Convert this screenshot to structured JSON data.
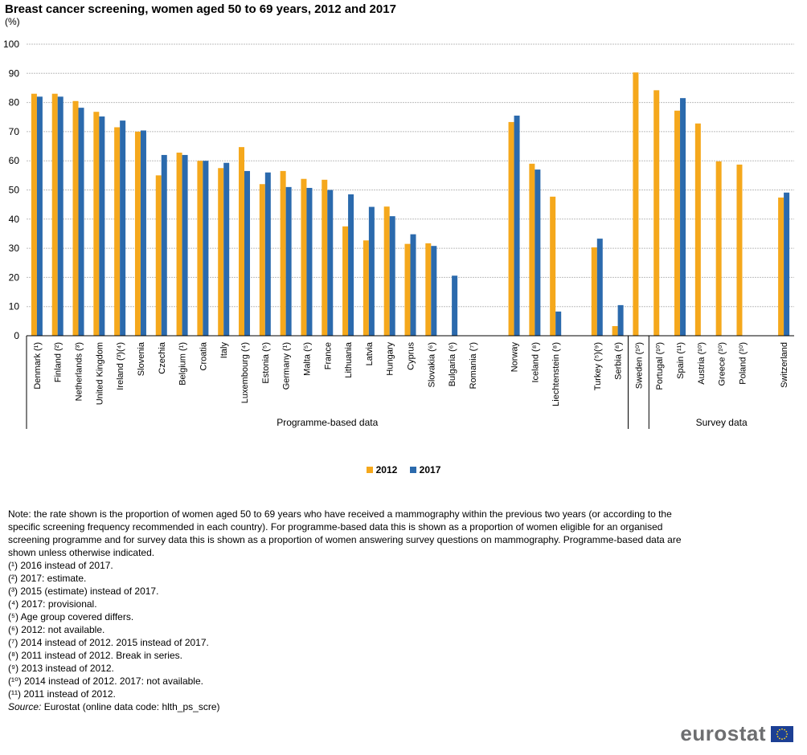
{
  "title": "Breast cancer screening, women aged 50 to 69 years, 2012 and 2017",
  "subtitle": "(%)",
  "colors": {
    "y2012": "#f5a81c",
    "y2017": "#2b6aad",
    "grid": "#bdbdbd",
    "axis": "#000000"
  },
  "legend": [
    {
      "label": "2012",
      "color": "#f5a81c"
    },
    {
      "label": "2017",
      "color": "#2b6aad"
    }
  ],
  "chart_data": {
    "type": "bar",
    "title": "Breast cancer screening, women aged 50 to 69 years, 2012 and 2017",
    "ylabel": "(%)",
    "ylim": [
      0,
      100
    ],
    "yticks": [
      0,
      10,
      20,
      30,
      40,
      50,
      60,
      70,
      80,
      90,
      100
    ],
    "grid": true,
    "legend_position": "bottom",
    "series_names": [
      "2012",
      "2017"
    ],
    "groups": [
      {
        "label": "Programme-based data",
        "categories": [
          {
            "label": "Denmark (¹)",
            "v2012": 83,
            "v2017": 82
          },
          {
            "label": "Finland (²)",
            "v2012": 83,
            "v2017": 82
          },
          {
            "label": "Netherlands (³)",
            "v2012": 80.5,
            "v2017": 78.2
          },
          {
            "label": "United Kingdom",
            "v2012": 76.8,
            "v2017": 75.2
          },
          {
            "label": "Ireland (³)(⁴)",
            "v2012": 71.5,
            "v2017": 73.8
          },
          {
            "label": "Slovenia",
            "v2012": 70,
            "v2017": 70.4
          },
          {
            "label": "Czechia",
            "v2012": 55,
            "v2017": 62
          },
          {
            "label": "Belgium (¹)",
            "v2012": 62.8,
            "v2017": 62
          },
          {
            "label": "Croatia",
            "v2012": 60,
            "v2017": 60
          },
          {
            "label": "Italy",
            "v2012": 57.5,
            "v2017": 59.3
          },
          {
            "label": "Luxembourg (⁴)",
            "v2012": 64.7,
            "v2017": 56.5
          },
          {
            "label": "Estonia (⁵)",
            "v2012": 52,
            "v2017": 56
          },
          {
            "label": "Germany (¹)",
            "v2012": 56.5,
            "v2017": 51
          },
          {
            "label": "Malta (⁵)",
            "v2012": 53.8,
            "v2017": 50.7
          },
          {
            "label": "France",
            "v2012": 53.5,
            "v2017": 50
          },
          {
            "label": "Lithuania",
            "v2012": 37.5,
            "v2017": 48.5
          },
          {
            "label": "Latvia",
            "v2012": 32.7,
            "v2017": 44.2
          },
          {
            "label": "Hungary",
            "v2012": 44.3,
            "v2017": 41
          },
          {
            "label": "Cyprus",
            "v2012": 31.5,
            "v2017": 34.8
          },
          {
            "label": "Slovakia (⁶)",
            "v2012": 31.7,
            "v2017": 30.8
          },
          {
            "label": "Bulgaria (⁶)",
            "v2012": null,
            "v2017": 20.6
          },
          {
            "label": "Romania (⁷)",
            "v2012": null,
            "v2017": null
          },
          {
            "label": "",
            "v2012": null,
            "v2017": null
          },
          {
            "label": "Norway",
            "v2012": 73.3,
            "v2017": 75.5
          },
          {
            "label": "Iceland (⁸)",
            "v2012": 59,
            "v2017": 57
          },
          {
            "label": "Liechtenstein (⁸)",
            "v2012": 47.7,
            "v2017": 8.3
          },
          {
            "label": "",
            "v2012": null,
            "v2017": null
          },
          {
            "label": "Turkey (⁵)(⁹)",
            "v2012": 30.3,
            "v2017": 33.3
          },
          {
            "label": "Serbia (⁸)",
            "v2012": 3.3,
            "v2017": 10.5
          }
        ]
      },
      {
        "label": "Survey data",
        "categories": [
          {
            "label": "Sweden (¹⁰)",
            "v2012": 90.3,
            "v2017": null
          },
          {
            "label": "Portugal (¹⁰)",
            "v2012": 84.2,
            "v2017": null
          },
          {
            "label": "Spain (¹¹)",
            "v2012": 77.2,
            "v2017": 81.5
          },
          {
            "label": "Austria (¹⁰)",
            "v2012": 72.8,
            "v2017": null
          },
          {
            "label": "Greece (¹⁰)",
            "v2012": 59.8,
            "v2017": null
          },
          {
            "label": "Poland (¹⁰)",
            "v2012": 58.7,
            "v2017": null
          },
          {
            "label": "",
            "v2012": null,
            "v2017": null
          },
          {
            "label": "Switzerland",
            "v2012": 47.4,
            "v2017": 49.1
          }
        ]
      }
    ]
  },
  "notes": [
    "Note: the rate shown is the proportion of women aged 50 to 69 years who have received a mammography within the previous two years (or according to the specific screening frequency recommended in each country). For programme-based data this is shown as a proportion of women eligible for an organised screening programme and for survey data this is shown as a proportion of women answering survey questions on mammography. Programme-based data are shown unless otherwise indicated.",
    "(¹) 2016 instead of 2017.",
    "(²) 2017: estimate.",
    "(³) 2015 (estimate) instead of 2017.",
    "(⁴) 2017: provisional.",
    "(⁵) Age group covered differs.",
    "(⁶) 2012: not available.",
    "(⁷) 2014 instead of 2012. 2015 instead of 2017.",
    "(⁸) 2011 instead of 2012. Break in series.",
    "(⁹) 2013 instead of 2012.",
    "(¹⁰) 2014 instead of 2012. 2017: not available.",
    "(¹¹) 2011 instead of 2012."
  ],
  "source": {
    "label": "Source:",
    "text": "Eurostat (online data code: hlth_ps_scre)"
  },
  "logo": {
    "text": "eurostat",
    "flag_icon": "eu-flag-icon"
  }
}
